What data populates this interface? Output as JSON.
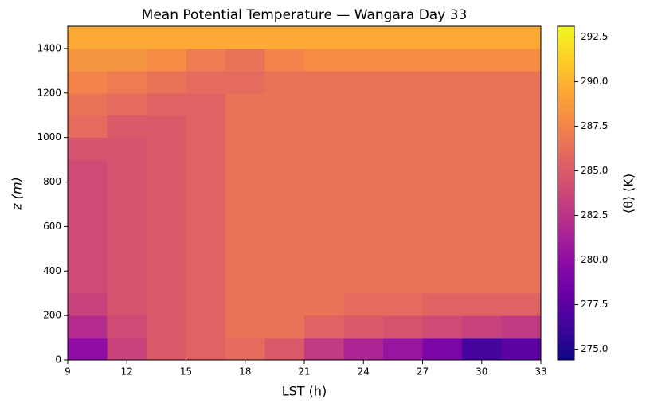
{
  "chart_data": {
    "type": "heatmap",
    "title": "Mean Potential Temperature — Wangara Day 33",
    "xlabel": "LST (h)",
    "ylabel": "z (m)",
    "colorbar_label": "⟨θ⟩ (K)",
    "colormap": "plasma",
    "x": [
      9,
      11,
      13,
      15,
      17,
      19,
      21,
      23,
      25,
      27,
      29,
      31,
      33
    ],
    "y": [
      0,
      100,
      200,
      300,
      400,
      500,
      600,
      700,
      800,
      900,
      1000,
      1100,
      1200,
      1300,
      1400,
      1500
    ],
    "values": [
      [
        280,
        283.5,
        285,
        285.5,
        286,
        285,
        283,
        281.5,
        280.5,
        279,
        276.5,
        277.5
      ],
      [
        282,
        284,
        285,
        285.5,
        286.5,
        286.5,
        285.5,
        285,
        284.5,
        284,
        283.5,
        283
      ],
      [
        283.5,
        284.5,
        285,
        285.5,
        286.5,
        286.5,
        286.5,
        286,
        286,
        285.5,
        285.5,
        285.5
      ],
      [
        284,
        284.5,
        285,
        285.5,
        286.5,
        286.5,
        286.5,
        286.5,
        286.5,
        286.5,
        286.5,
        286.5
      ],
      [
        284,
        284.5,
        285,
        285.5,
        286.5,
        286.5,
        286.5,
        286.5,
        286.5,
        286.5,
        286.5,
        286.5
      ],
      [
        284,
        284.5,
        285,
        285.5,
        286.5,
        286.5,
        286.5,
        286.5,
        286.5,
        286.5,
        286.5,
        286.5
      ],
      [
        284,
        284.5,
        285,
        285.5,
        286.5,
        286.5,
        286.5,
        286.5,
        286.5,
        286.5,
        286.5,
        286.5
      ],
      [
        284,
        284.5,
        285,
        285.5,
        286.5,
        286.5,
        286.5,
        286.5,
        286.5,
        286.5,
        286.5,
        286.5
      ],
      [
        284,
        284.5,
        285,
        285.5,
        286.5,
        286.5,
        286.5,
        286.5,
        286.5,
        286.5,
        286.5,
        286.5
      ],
      [
        284.5,
        284.5,
        285,
        285.5,
        286.5,
        286.5,
        286.5,
        286.5,
        286.5,
        286.5,
        286.5,
        286.5
      ],
      [
        286,
        285,
        285,
        285.5,
        286.5,
        286.5,
        286.5,
        286.5,
        286.5,
        286.5,
        286.5,
        286.5
      ],
      [
        286.5,
        286,
        285.5,
        285.5,
        286.5,
        286.5,
        286.5,
        286.5,
        286.5,
        286.5,
        286.5,
        286.5
      ],
      [
        287.5,
        287,
        286.5,
        286,
        286,
        286.5,
        286.5,
        286.5,
        286.5,
        286.5,
        286.5,
        286.5
      ],
      [
        288.5,
        288.5,
        288,
        287,
        286.5,
        287.5,
        288,
        288,
        288,
        288,
        288,
        288
      ],
      [
        289.5,
        289.5,
        289.5,
        289.5,
        289.5,
        289.5,
        289.5,
        289.5,
        289.5,
        289.5,
        289.5,
        289.5
      ]
    ],
    "xlim": [
      9,
      33
    ],
    "xticks": [
      9,
      12,
      15,
      18,
      21,
      24,
      27,
      30,
      33
    ],
    "ylim": [
      0,
      1500
    ],
    "yticks": [
      0,
      200,
      400,
      600,
      800,
      1000,
      1200,
      1400
    ],
    "clim": [
      274.4,
      293.1
    ],
    "cticks": [
      {
        "value": 275,
        "label": "275.0"
      },
      277.5,
      {
        "value": 280,
        "label": "280.0"
      },
      282.5,
      {
        "value": 285,
        "label": "285.0"
      },
      287.5,
      {
        "value": 290,
        "label": "290.0"
      },
      292.5
    ]
  }
}
